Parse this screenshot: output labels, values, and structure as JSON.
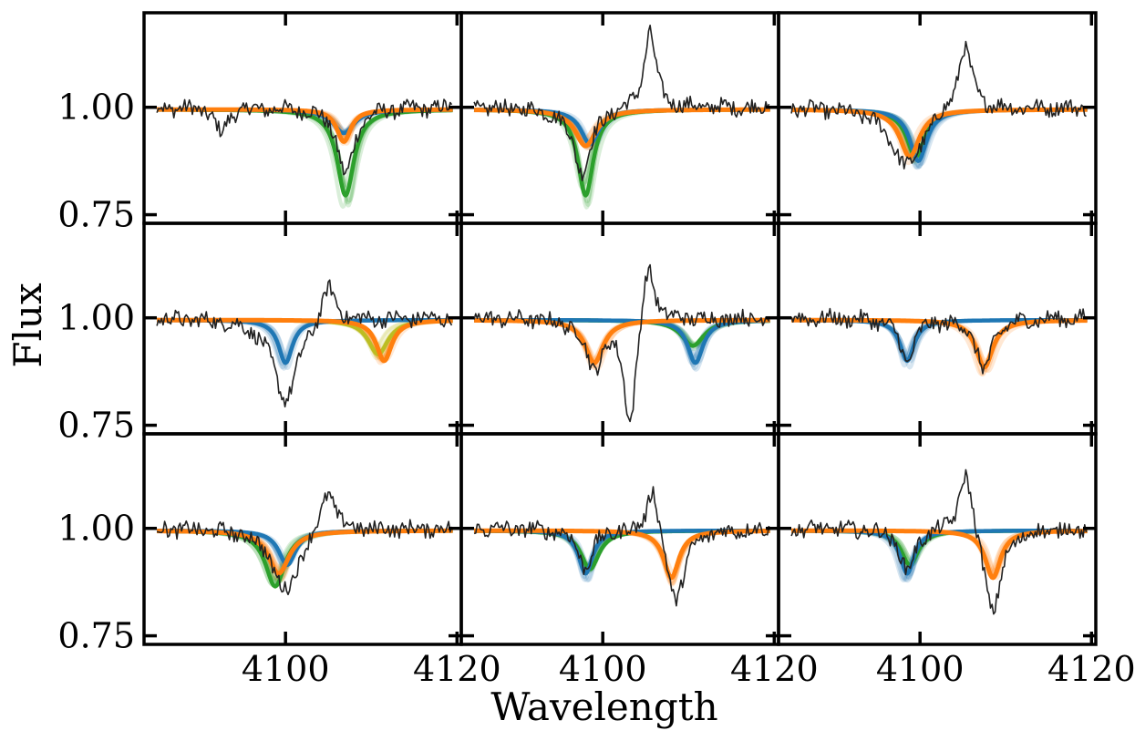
{
  "figure": {
    "xlabel": "Wavelength",
    "ylabel": "Flux",
    "x_ticks": [
      4100,
      4120
    ],
    "y_ticks": [
      1.0,
      0.75
    ],
    "y_tick_labels": [
      "1.00",
      "0.75"
    ]
  },
  "colors": {
    "data_line": "#222222",
    "blue": "#1f77b4",
    "orange": "#ff7f0e",
    "green": "#2ca02c",
    "olive": "#bcbd22"
  },
  "chart_data": {
    "type": "line",
    "layout": "3x3 grid of panels with shared axes",
    "xlim": [
      4083.5,
      4120.5
    ],
    "ylim": [
      0.73,
      1.22
    ],
    "x_ticks": [
      4100,
      4120
    ],
    "y_ticks": [
      1.0,
      0.75
    ],
    "xlabel": "Wavelength",
    "ylabel": "Flux",
    "grid": false,
    "legend": "none",
    "panels": [
      {
        "row": 0,
        "col": 0,
        "models": {
          "blue": {
            "center": 4106.8,
            "depth": 0.055,
            "width": 1.5
          },
          "green": {
            "center": 4107.0,
            "depth": 0.2,
            "width": 1.2
          },
          "orange": {
            "center": 4106.8,
            "depth": 0.075,
            "width": 1.0
          }
        },
        "data_features": [
          {
            "center": 4092.5,
            "depth": 0.06,
            "width": 0.8
          },
          {
            "center": 4107.0,
            "depth": 0.16,
            "width": 1.1
          }
        ]
      },
      {
        "row": 0,
        "col": 1,
        "models": {
          "blue": {
            "center": 4098.5,
            "depth": 0.08,
            "width": 1.3
          },
          "green": {
            "center": 4098.0,
            "depth": 0.2,
            "width": 1.1
          },
          "orange": {
            "center": 4098.0,
            "depth": 0.085,
            "width": 1.5
          }
        },
        "data_features": [
          {
            "center": 4097.6,
            "depth": 0.15,
            "width": 1.3
          },
          {
            "center": 4105.5,
            "depth": -0.18,
            "width": 0.8
          }
        ]
      },
      {
        "row": 0,
        "col": 2,
        "models": {
          "blue": {
            "center": 4099.8,
            "depth": 0.12,
            "width": 1.2
          },
          "green": {
            "center": 4099.5,
            "depth": 0.11,
            "width": 1.3
          },
          "orange": {
            "center": 4098.8,
            "depth": 0.11,
            "width": 1.4
          }
        },
        "data_features": [
          {
            "center": 4098.5,
            "depth": 0.14,
            "width": 2.2
          },
          {
            "center": 4105.2,
            "depth": -0.15,
            "width": 1.0
          }
        ]
      },
      {
        "row": 1,
        "col": 0,
        "models": {
          "blue": {
            "center": 4100.0,
            "depth": 0.1,
            "width": 1.0
          },
          "olive": {
            "center": 4110.8,
            "depth": 0.08,
            "width": 1.4
          },
          "orange": {
            "center": 4111.5,
            "depth": 0.095,
            "width": 1.1
          }
        },
        "data_features": [
          {
            "center": 4100.0,
            "depth": 0.19,
            "width": 1.8
          },
          {
            "center": 4105.0,
            "depth": -0.09,
            "width": 1.0
          }
        ]
      },
      {
        "row": 1,
        "col": 1,
        "models": {
          "blue": {
            "center": 4110.8,
            "depth": 0.1,
            "width": 1.1
          },
          "green": {
            "center": 4110.5,
            "depth": 0.06,
            "width": 1.6
          },
          "orange": {
            "center": 4099.0,
            "depth": 0.1,
            "width": 1.3
          }
        },
        "data_features": [
          {
            "center": 4099.0,
            "depth": 0.11,
            "width": 1.3
          },
          {
            "center": 4103.2,
            "depth": 0.25,
            "width": 0.9
          },
          {
            "center": 4105.3,
            "depth": -0.15,
            "width": 0.9
          }
        ]
      },
      {
        "row": 1,
        "col": 2,
        "models": {
          "blue": {
            "center": 4098.5,
            "depth": 0.095,
            "width": 1.0
          },
          "orange": {
            "center": 4107.5,
            "depth": 0.11,
            "width": 1.2
          }
        },
        "data_features": [
          {
            "center": 4098.5,
            "depth": 0.1,
            "width": 1.0
          },
          {
            "center": 4107.5,
            "depth": 0.12,
            "width": 1.1
          }
        ]
      },
      {
        "row": 2,
        "col": 0,
        "models": {
          "blue": {
            "center": 4100.2,
            "depth": 0.08,
            "width": 1.2
          },
          "green": {
            "center": 4098.8,
            "depth": 0.13,
            "width": 1.4
          },
          "orange": {
            "center": 4099.2,
            "depth": 0.1,
            "width": 1.5
          }
        },
        "data_features": [
          {
            "center": 4100.0,
            "depth": 0.15,
            "width": 1.8
          },
          {
            "center": 4105.0,
            "depth": -0.1,
            "width": 1.0
          }
        ]
      },
      {
        "row": 2,
        "col": 1,
        "models": {
          "blue": {
            "center": 4098.0,
            "depth": 0.1,
            "width": 1.0
          },
          "green": {
            "center": 4098.5,
            "depth": 0.09,
            "width": 1.3
          },
          "orange": {
            "center": 4108.0,
            "depth": 0.11,
            "width": 1.1
          }
        },
        "data_features": [
          {
            "center": 4098.0,
            "depth": 0.09,
            "width": 1.0
          },
          {
            "center": 4108.5,
            "depth": 0.17,
            "width": 1.3
          },
          {
            "center": 4105.8,
            "depth": -0.12,
            "width": 0.8
          }
        ]
      },
      {
        "row": 2,
        "col": 2,
        "models": {
          "blue": {
            "center": 4098.5,
            "depth": 0.1,
            "width": 1.0
          },
          "green": {
            "center": 4098.8,
            "depth": 0.08,
            "width": 1.2
          },
          "orange": {
            "center": 4108.5,
            "depth": 0.11,
            "width": 1.1
          }
        },
        "data_features": [
          {
            "center": 4098.5,
            "depth": 0.1,
            "width": 1.0
          },
          {
            "center": 4108.5,
            "depth": 0.2,
            "width": 1.2
          },
          {
            "center": 4105.3,
            "depth": -0.15,
            "width": 0.9
          }
        ]
      }
    ]
  }
}
